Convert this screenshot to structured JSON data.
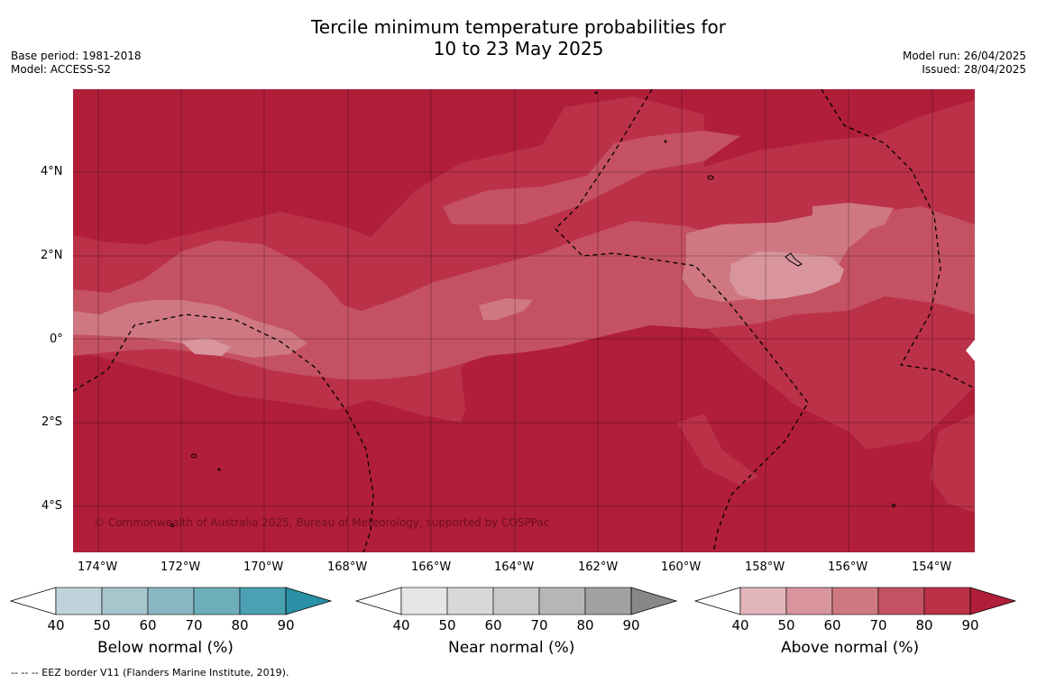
{
  "title": {
    "line1": "Tercile minimum temperature probabilities for",
    "line2": "10 to 23 May 2025"
  },
  "meta_left": {
    "base_period": "Base period: 1981-2018",
    "model": "Model: ACCESS-S2"
  },
  "meta_right": {
    "model_run": "Model run: 26/04/2025",
    "issued": "Issued: 28/04/2025"
  },
  "map": {
    "lat_labels": [
      "4°N",
      "2°N",
      "0°",
      "2°S",
      "4°S"
    ],
    "lon_labels": [
      "174°W",
      "172°W",
      "170°W",
      "168°W",
      "166°W",
      "164°W",
      "162°W",
      "160°W",
      "158°W",
      "156°W",
      "154°W"
    ],
    "copyright": "© Commonwealth of Australia 2025, Bureau of Meteorology, supported by COSPPac",
    "colors": {
      "above_90": "#b01e3a",
      "above_80": "#bb3148",
      "above_70": "#c45262",
      "above_60": "#cf7882",
      "above_50": "#d8959d",
      "above_40": "#e2b5bb"
    }
  },
  "legends": [
    {
      "title": "Below normal (%)",
      "ticks": [
        "40",
        "50",
        "60",
        "70",
        "80",
        "90"
      ],
      "colors": [
        "#bed3da",
        "#a7c5cc",
        "#8bb6c3",
        "#6daeba",
        "#4ba1b1",
        "#2a90a6"
      ]
    },
    {
      "title": "Near normal (%)",
      "ticks": [
        "40",
        "50",
        "60",
        "70",
        "80",
        "90"
      ],
      "colors": [
        "#e6e6e6",
        "#d8d8d8",
        "#c9c9c9",
        "#b6b6b6",
        "#a2a2a2",
        "#888888"
      ]
    },
    {
      "title": "Above normal (%)",
      "ticks": [
        "40",
        "50",
        "60",
        "70",
        "80",
        "90"
      ],
      "colors": [
        "#e2b5bb",
        "#d8959d",
        "#cf7882",
        "#c45262",
        "#bb3148",
        "#b01e3a"
      ]
    }
  ],
  "footnote": "--  --  -- EEZ border V11 (Flanders Marine Institute, 2019)."
}
